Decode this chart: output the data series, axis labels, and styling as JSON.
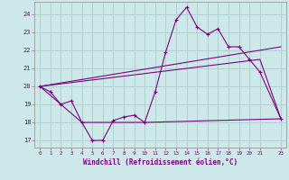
{
  "xlabel": "Windchill (Refroidissement éolien,°C)",
  "bg_color": "#cce8e8",
  "grid_color": "#b0d0d0",
  "line_color": "#800080",
  "xlim": [
    -0.5,
    23.5
  ],
  "ylim": [
    16.6,
    24.7
  ],
  "yticks": [
    17,
    18,
    19,
    20,
    21,
    22,
    23,
    24
  ],
  "xticks": [
    0,
    1,
    2,
    3,
    4,
    5,
    6,
    7,
    8,
    9,
    10,
    11,
    12,
    13,
    14,
    15,
    16,
    17,
    18,
    19,
    20,
    21,
    23
  ],
  "series1_x": [
    0,
    1,
    2,
    3,
    4,
    5,
    6,
    7,
    8,
    9,
    10,
    11,
    12,
    13,
    14,
    15,
    16,
    17,
    18,
    19,
    20,
    21,
    23
  ],
  "series1_y": [
    20.0,
    19.7,
    19.0,
    19.2,
    18.0,
    17.0,
    17.0,
    18.1,
    18.3,
    18.4,
    18.0,
    19.7,
    21.9,
    23.7,
    24.4,
    23.3,
    22.9,
    23.2,
    22.2,
    22.2,
    21.5,
    20.8,
    18.2
  ],
  "series2_x": [
    0,
    4,
    10,
    23
  ],
  "series2_y": [
    20.0,
    18.0,
    18.0,
    18.2
  ],
  "series3_x": [
    0,
    23
  ],
  "series3_y": [
    20.0,
    22.2
  ],
  "series4_x": [
    0,
    21,
    23
  ],
  "series4_y": [
    20.0,
    21.5,
    18.2
  ]
}
